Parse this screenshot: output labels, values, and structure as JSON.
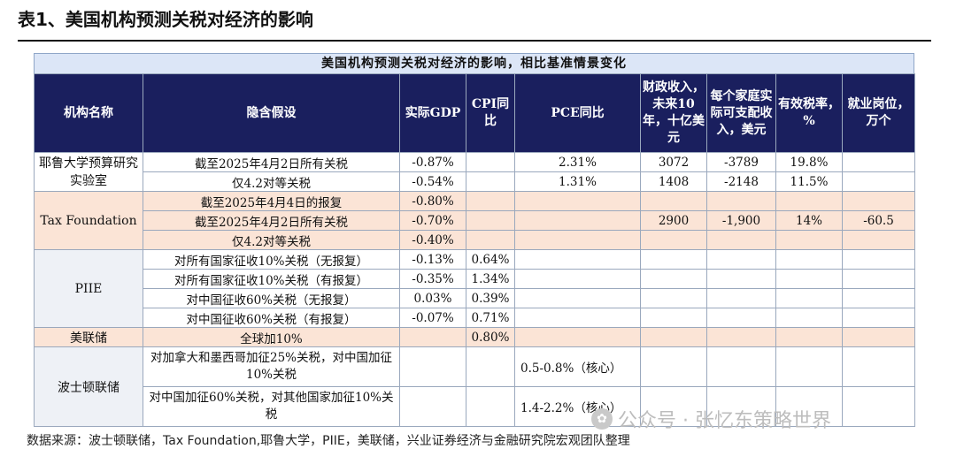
{
  "doc_title": "表1、美国机构预测关税对经济的影响",
  "caption": "美国机构预测关税对经济的影响，相比基准情景变化",
  "headers": {
    "org": "机构名称",
    "assumption": "隐含假设",
    "gdp": "实际GDP",
    "cpi": "CPI同比",
    "pce": "PCE同比",
    "fiscal": "财政收入，未来10年，十亿美元",
    "income": "每个家庭实际可支配收入，美元",
    "tax": "有效税率，%",
    "jobs": "就业岗位，万个"
  },
  "orgs": {
    "yale": "耶鲁大学预算研究实验室",
    "tax_foundation": "Tax Foundation",
    "piie": "PIIE",
    "fed_reserve": "美联储",
    "boston_fed": "波士顿联储"
  },
  "rows": [
    {
      "assumption": "截至2025年4月2日所有关税",
      "gdp": "-0.87%",
      "cpi": "",
      "pce": "2.31%",
      "fiscal": "3072",
      "income": "-3789",
      "tax": "19.8%",
      "jobs": ""
    },
    {
      "assumption": "仅4.2对等关税",
      "gdp": "-0.54%",
      "cpi": "",
      "pce": "1.31%",
      "fiscal": "1408",
      "income": "-2148",
      "tax": "11.5%",
      "jobs": ""
    },
    {
      "assumption": "截至2025年4月4日的报复",
      "gdp": "-0.80%",
      "cpi": "",
      "pce": "",
      "fiscal": "",
      "income": "",
      "tax": "",
      "jobs": ""
    },
    {
      "assumption": "截至2025年4月2日所有关税",
      "gdp": "-0.70%",
      "cpi": "",
      "pce": "",
      "fiscal": "2900",
      "income": "-1,900",
      "tax": "14%",
      "jobs": "-60.5"
    },
    {
      "assumption": "仅4.2对等关税",
      "gdp": "-0.40%",
      "cpi": "",
      "pce": "",
      "fiscal": "",
      "income": "",
      "tax": "",
      "jobs": ""
    },
    {
      "assumption": "对所有国家征收10%关税（无报复）",
      "gdp": "-0.13%",
      "cpi": "0.64%",
      "pce": "",
      "fiscal": "",
      "income": "",
      "tax": "",
      "jobs": ""
    },
    {
      "assumption": "对所有国家征收10%关税（有报复）",
      "gdp": "-0.35%",
      "cpi": "1.34%",
      "pce": "",
      "fiscal": "",
      "income": "",
      "tax": "",
      "jobs": ""
    },
    {
      "assumption": "对中国征收60%关税（无报复）",
      "gdp": "0.03%",
      "cpi": "0.39%",
      "pce": "",
      "fiscal": "",
      "income": "",
      "tax": "",
      "jobs": ""
    },
    {
      "assumption": "对中国征收60%关税（有报复）",
      "gdp": "-0.07%",
      "cpi": "0.71%",
      "pce": "",
      "fiscal": "",
      "income": "",
      "tax": "",
      "jobs": ""
    },
    {
      "assumption": "全球加10%",
      "gdp": "",
      "cpi": "0.80%",
      "pce": "",
      "fiscal": "",
      "income": "",
      "tax": "",
      "jobs": ""
    },
    {
      "assumption": "对加拿大和墨西哥加征25%关税，对中国加征10%关税",
      "gdp": "",
      "cpi": "",
      "pce": "0.5-0.8%（核心）",
      "fiscal": "",
      "income": "",
      "tax": "",
      "jobs": ""
    },
    {
      "assumption": "对中国加征60%关税，对其他国家加征10%关税",
      "gdp": "",
      "cpi": "",
      "pce": "1.4-2.2%（核心）",
      "fiscal": "",
      "income": "",
      "tax": "",
      "jobs": ""
    }
  ],
  "source": "数据来源：波士顿联储，Tax Foundation,耶鲁大学，PIIE，美联储，兴业证券经济与金融研究院宏观团队整理",
  "watermark": "公众号 · 张忆东策略世界"
}
